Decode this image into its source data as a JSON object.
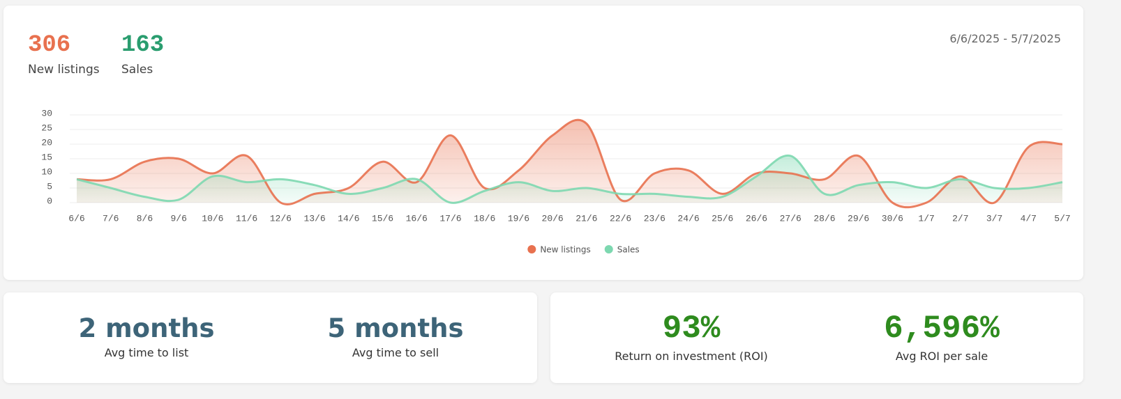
{
  "summary": [
    {
      "value": 306,
      "label": "New listings"
    },
    {
      "value": 163,
      "label": "Sales"
    }
  ],
  "date_range": "6/6/2025 - 5/7/2025",
  "chart_data": {
    "type": "area",
    "categories": [
      "6/6",
      "7/6",
      "8/6",
      "9/6",
      "10/6",
      "11/6",
      "12/6",
      "13/6",
      "14/6",
      "15/6",
      "16/6",
      "17/6",
      "18/6",
      "19/6",
      "20/6",
      "21/6",
      "22/6",
      "23/6",
      "24/6",
      "25/6",
      "26/6",
      "27/6",
      "28/6",
      "29/6",
      "30/6",
      "1/7",
      "2/7",
      "3/7",
      "4/7",
      "5/7"
    ],
    "series": [
      {
        "name": "New listings",
        "color": "#e8714f",
        "values": [
          8,
          8,
          14,
          15,
          10,
          16,
          0,
          3,
          5,
          14,
          7,
          23,
          5,
          11,
          23,
          27,
          1,
          10,
          11,
          3,
          10,
          10,
          8,
          16,
          0,
          0,
          9,
          0,
          19,
          20
        ]
      },
      {
        "name": "Sales",
        "color": "#7dd8b0",
        "values": [
          8,
          5,
          2,
          1,
          9,
          7,
          8,
          6,
          3,
          5,
          8,
          0,
          4,
          7,
          4,
          5,
          3,
          3,
          2,
          2,
          9,
          16,
          3,
          6,
          7,
          5,
          8,
          5,
          5,
          7
        ]
      }
    ],
    "ylim": [
      0,
      30
    ],
    "yticks": [
      0,
      5,
      10,
      15,
      20,
      25,
      30
    ],
    "grid": true,
    "legend": "bottom"
  },
  "stats": {
    "time": [
      {
        "value": "2 months",
        "label": "Avg time to list"
      },
      {
        "value": "5 months",
        "label": "Avg time to sell"
      }
    ],
    "roi": [
      {
        "value": "93%",
        "label": "Return on investment (ROI)"
      },
      {
        "value": "6,596%",
        "label": "Avg ROI per sale"
      }
    ]
  }
}
